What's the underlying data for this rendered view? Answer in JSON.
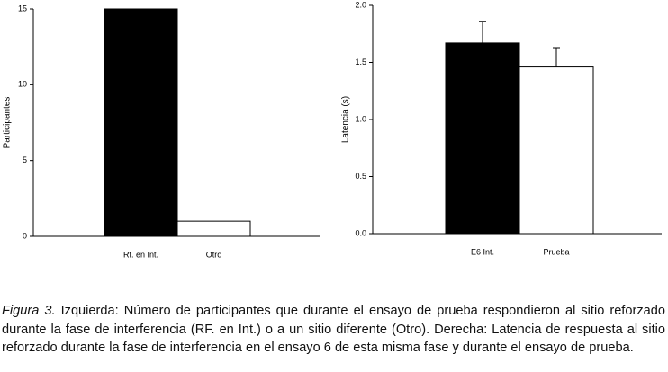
{
  "chart_data": [
    {
      "type": "bar",
      "ylabel": "Participantes",
      "categories": [
        "Rf. en Int.",
        "Otro"
      ],
      "values": [
        15,
        1
      ],
      "colors": [
        "#000000",
        "#ffffff"
      ],
      "ylim": [
        0,
        15
      ],
      "yticks": [
        0,
        5,
        10,
        15
      ]
    },
    {
      "type": "bar",
      "ylabel": "Latencia (s)",
      "categories": [
        "E6 Int.",
        "Prueba"
      ],
      "values": [
        1.67,
        1.46
      ],
      "errors": [
        0.19,
        0.17
      ],
      "colors": [
        "#000000",
        "#ffffff"
      ],
      "ylim": [
        0,
        2
      ],
      "yticks": [
        {
          "value": 0,
          "label": "0.0"
        },
        0.5,
        {
          "value": 1,
          "label": "1.0"
        },
        1.5,
        {
          "value": 2,
          "label": "2.0"
        }
      ]
    }
  ],
  "caption": {
    "label": "Figura 3.",
    "text": "Izquierda: Número de participantes que durante el ensayo de prueba respondieron al sitio reforzado durante la fase de interferencia (RF. en Int.) o a un sitio diferente (Otro). Derecha: Latencia de respuesta al sitio reforzado durante la fase de interferencia en el ensayo 6 de esta misma fase y durante el ensayo de prueba."
  }
}
